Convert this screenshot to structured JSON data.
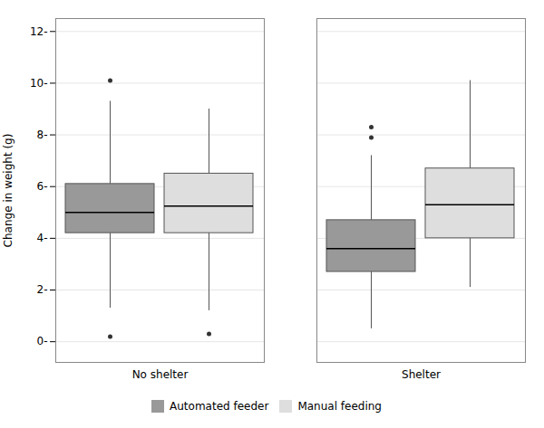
{
  "chart_data": {
    "type": "box",
    "ylabel": "Change in weight (g)",
    "categories": [
      "No shelter",
      "Shelter"
    ],
    "series": [
      {
        "name": "Automated feeder",
        "color": "#999999",
        "values": [
          {
            "q1": 4.2,
            "median": 5.0,
            "q3": 6.1,
            "whisker_low": 1.3,
            "whisker_high": 9.3,
            "fliers": [
              10.1,
              0.2
            ]
          },
          {
            "q1": 2.7,
            "median": 3.6,
            "q3": 4.7,
            "whisker_low": 0.5,
            "whisker_high": 7.2,
            "fliers": [
              7.9,
              8.3
            ]
          }
        ]
      },
      {
        "name": "Manual feeding",
        "color": "#dedede",
        "values": [
          {
            "q1": 4.2,
            "median": 5.25,
            "q3": 6.5,
            "whisker_low": 1.2,
            "whisker_high": 9.0,
            "fliers": [
              0.3
            ]
          },
          {
            "q1": 4.0,
            "median": 5.3,
            "q3": 6.7,
            "whisker_low": 2.1,
            "whisker_high": 10.1,
            "fliers": []
          }
        ]
      }
    ],
    "ylim": [
      -0.8,
      12.5
    ],
    "yticks": [
      {
        "value": 0,
        "label": "0-"
      },
      {
        "value": 2,
        "label": "2-"
      },
      {
        "value": 4,
        "label": "4-"
      },
      {
        "value": 6,
        "label": "6-"
      },
      {
        "value": 8,
        "label": "8-"
      },
      {
        "value": 10,
        "label": "10-"
      },
      {
        "value": 12,
        "label": "12-"
      }
    ],
    "grid": true,
    "legend": "bottom"
  }
}
